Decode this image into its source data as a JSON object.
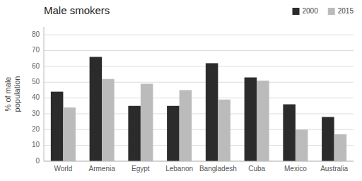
{
  "chart_data": {
    "type": "bar",
    "title": "Male smokers",
    "ylabel": "% of male\npopulation",
    "categories": [
      "World",
      "Armenia",
      "Egypt",
      "Lebanon",
      "Bangladesh",
      "Cuba",
      "Mexico",
      "Australia"
    ],
    "series": [
      {
        "name": "2000",
        "color": "#2b2b2b",
        "values": [
          44,
          66,
          35,
          35,
          62,
          53,
          36,
          28
        ]
      },
      {
        "name": "2015",
        "color": "#bbbbbb",
        "values": [
          34,
          52,
          49,
          45,
          39,
          51,
          20,
          17
        ]
      }
    ],
    "ylim": [
      0,
      85
    ],
    "yticks": [
      0,
      10,
      20,
      30,
      40,
      50,
      60,
      70,
      80
    ],
    "grid": true,
    "legend": "upper right"
  }
}
